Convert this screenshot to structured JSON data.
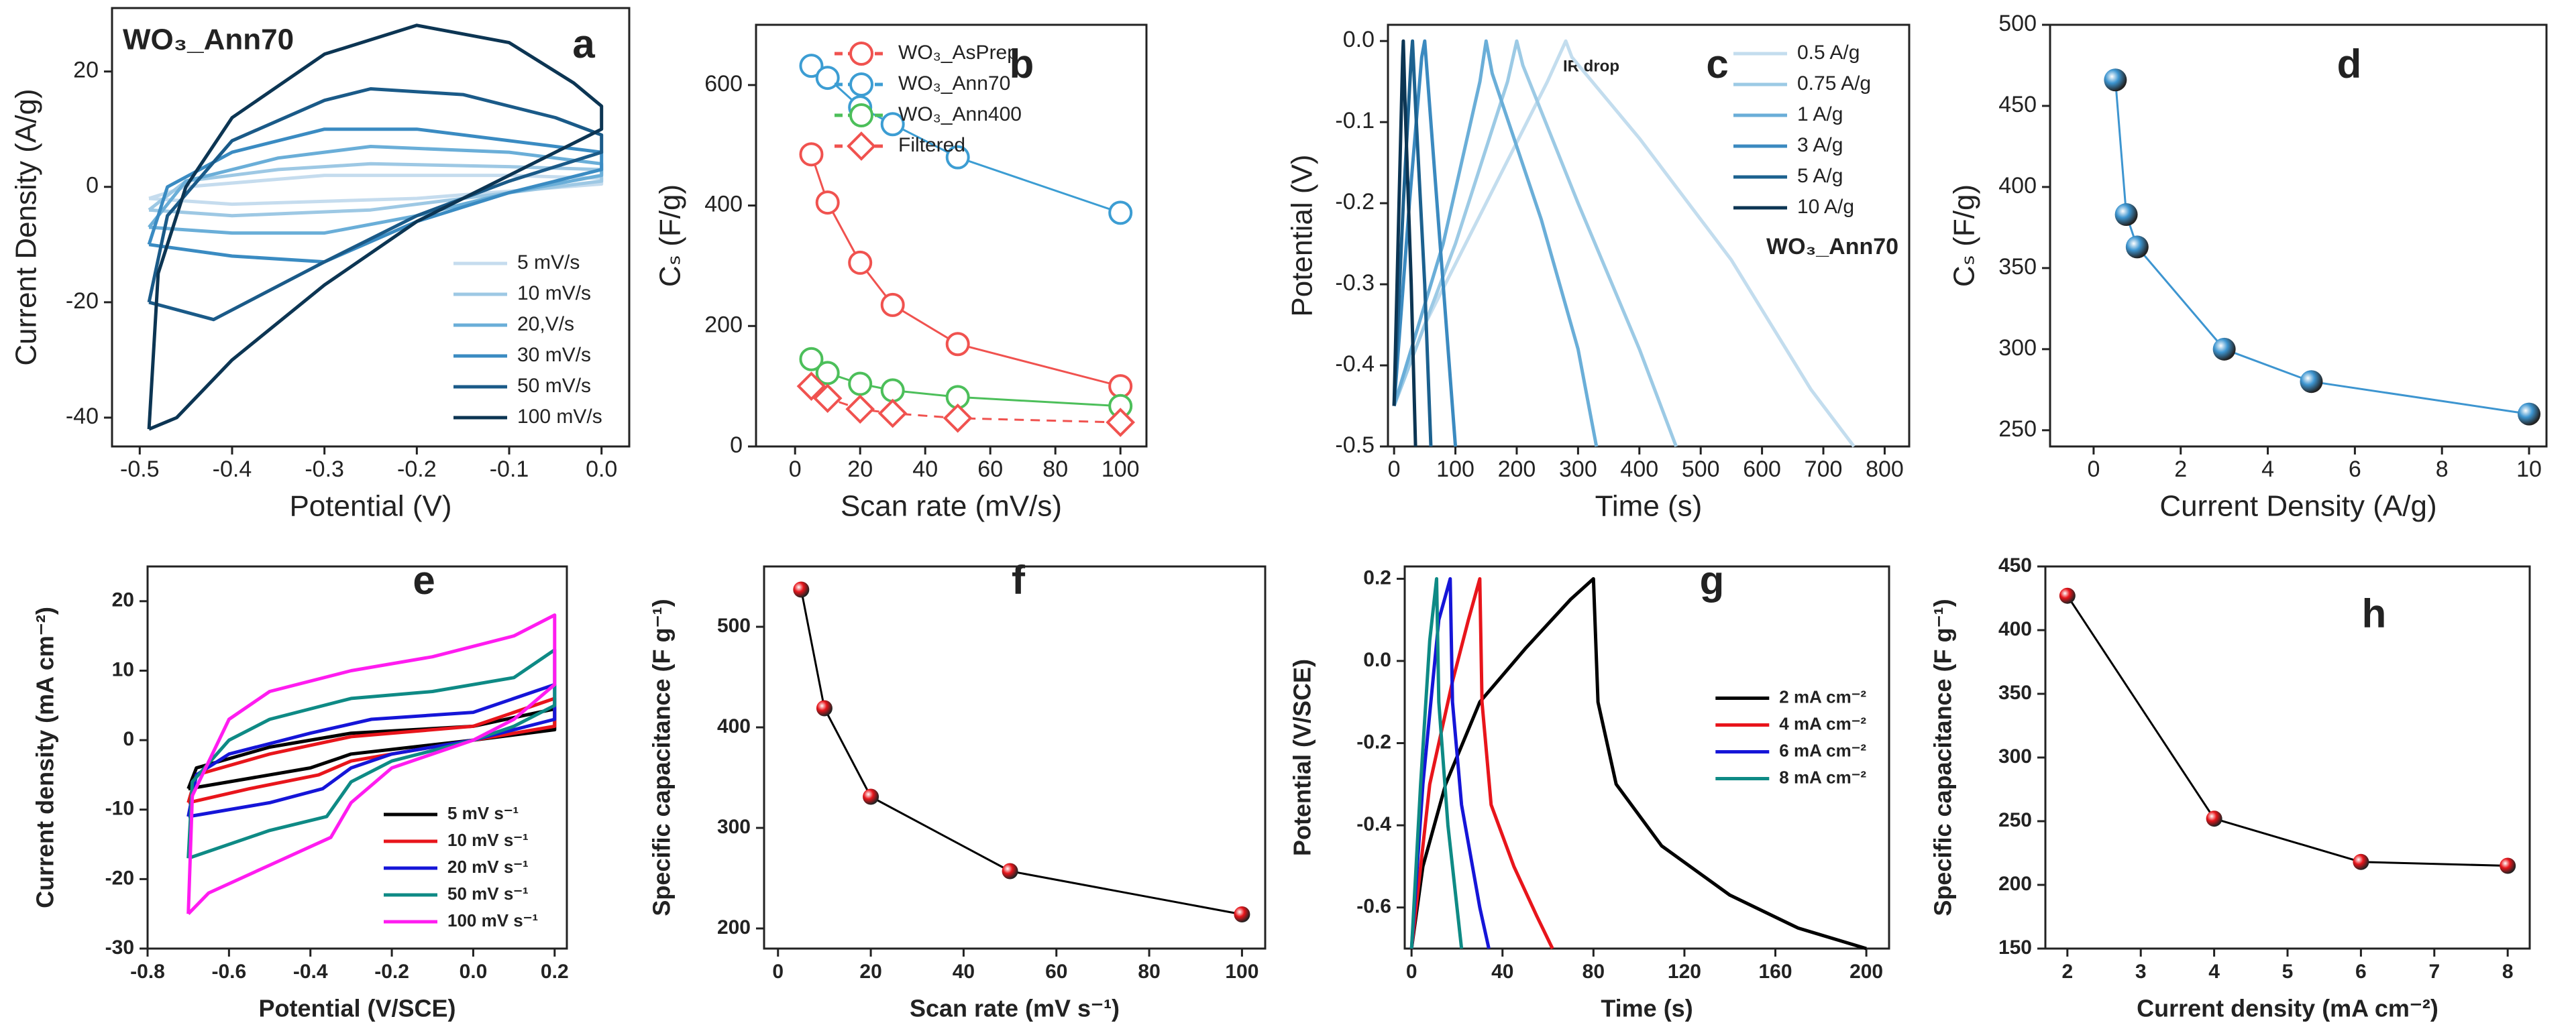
{
  "chart_data": [
    {
      "type": "line",
      "panel_label": "a",
      "annotations": [
        "WO₃_Ann70"
      ],
      "x_label": "Potential (V)",
      "y_label": "Current Density (A/g)",
      "xlim": [
        -0.53,
        0.03
      ],
      "xticks": [
        -0.5,
        -0.4,
        -0.3,
        -0.2,
        -0.1,
        {
          "value": 0,
          "label": "0.0"
        }
      ],
      "ylim": [
        -45,
        31
      ],
      "yticks": [
        -40,
        -20,
        0,
        20
      ],
      "legend": "lower right",
      "series": [
        {
          "name": "5 mV/s",
          "color": "#c5dcee",
          "x": [
            -0.49,
            -0.45,
            -0.3,
            -0.1,
            0,
            0,
            -0.2,
            -0.4,
            -0.49
          ],
          "values": [
            -2,
            0,
            2,
            2,
            1.5,
            0.5,
            -2,
            -3,
            -2
          ]
        },
        {
          "name": "10 mV/s",
          "color": "#9dc8e4",
          "x": [
            -0.49,
            -0.45,
            -0.35,
            -0.25,
            -0.1,
            0,
            0,
            -0.1,
            -0.25,
            -0.4,
            -0.49
          ],
          "values": [
            -4,
            1,
            3,
            4,
            3.5,
            3,
            1,
            -1,
            -4,
            -5,
            -4
          ]
        },
        {
          "name": "20,V/s",
          "color": "#6aaed8",
          "x": [
            -0.49,
            -0.45,
            -0.35,
            -0.25,
            -0.1,
            0,
            0,
            -0.1,
            -0.2,
            -0.3,
            -0.4,
            -0.49
          ],
          "values": [
            -7,
            1,
            5,
            7,
            6,
            4,
            2,
            -1,
            -5,
            -8,
            -8,
            -7
          ]
        },
        {
          "name": "30 mV/s",
          "color": "#3a8bc2",
          "x": [
            -0.49,
            -0.47,
            -0.4,
            -0.3,
            -0.2,
            -0.1,
            0,
            0,
            -0.1,
            -0.2,
            -0.3,
            -0.4,
            -0.49
          ],
          "values": [
            -10,
            0,
            6,
            10,
            10,
            8,
            6,
            3,
            -1,
            -6,
            -13,
            -12,
            -10
          ]
        },
        {
          "name": "50 mV/s",
          "color": "#1a5a88",
          "x": [
            -0.49,
            -0.47,
            -0.4,
            -0.3,
            -0.25,
            -0.15,
            -0.05,
            0,
            0,
            -0.1,
            -0.2,
            -0.3,
            -0.42,
            -0.49
          ],
          "values": [
            -20,
            -5,
            8,
            15,
            17,
            16,
            12,
            9,
            6,
            1,
            -5,
            -13,
            -23,
            -20
          ]
        },
        {
          "name": "100 mV/s",
          "color": "#0c3553",
          "x": [
            -0.49,
            -0.48,
            -0.45,
            -0.4,
            -0.3,
            -0.2,
            -0.1,
            -0.03,
            0,
            0,
            -0.05,
            -0.1,
            -0.2,
            -0.3,
            -0.4,
            -0.46,
            -0.49
          ],
          "values": [
            -42,
            -15,
            0,
            12,
            23,
            28,
            25,
            18,
            14,
            10,
            6,
            2,
            -6,
            -17,
            -30,
            -40,
            -42
          ]
        }
      ]
    },
    {
      "type": "line",
      "panel_label": "b",
      "x_label": "Scan rate (mV/s)",
      "y_label": "Cₛ (F/g)",
      "xlim": [
        -12,
        108
      ],
      "xticks": [
        0,
        20,
        40,
        60,
        80,
        100
      ],
      "ylim": [
        0,
        700
      ],
      "yticks": [
        0,
        200,
        400,
        600
      ],
      "legend": "upper right",
      "x": [
        5,
        10,
        20,
        30,
        50,
        100
      ],
      "series": [
        {
          "name": "WO₃_AsPrep",
          "color": "#f0524f",
          "marker": "circle",
          "values": [
            485,
            405,
            305,
            235,
            170,
            100
          ]
        },
        {
          "name": "WO₃_Ann70",
          "color": "#3c9dd3",
          "marker": "circle",
          "values": [
            632,
            612,
            563,
            535,
            480,
            388
          ]
        },
        {
          "name": "WO₃_Ann400",
          "color": "#4cbf5a",
          "marker": "circle",
          "values": [
            145,
            122,
            104,
            93,
            82,
            67
          ]
        },
        {
          "name": "Filtered",
          "color": "#f0524f",
          "marker": "diamond",
          "dashed": true,
          "values": [
            100,
            80,
            62,
            55,
            47,
            40
          ]
        }
      ]
    },
    {
      "type": "line",
      "panel_label": "c",
      "annotations": [
        "WO₃_Ann70",
        "IR drop"
      ],
      "x_label": "Time (s)",
      "y_label": "Potential (V)",
      "xlim": [
        -10,
        840
      ],
      "xticks": [
        0,
        100,
        200,
        300,
        400,
        500,
        600,
        700,
        800
      ],
      "ylim": [
        -0.5,
        0.02
      ],
      "yticks": [
        -0.5,
        -0.4,
        -0.3,
        -0.2,
        -0.1,
        {
          "value": 0,
          "label": "0.0"
        }
      ],
      "legend": "upper right",
      "series": [
        {
          "name": "0.5 A/g",
          "color": "#c3ddee",
          "x": [
            0,
            50,
            150,
            250,
            280,
            290,
            400,
            550,
            680,
            750
          ],
          "values": [
            -0.45,
            -0.35,
            -0.2,
            -0.05,
            0,
            -0.02,
            -0.12,
            -0.27,
            -0.43,
            -0.5
          ]
        },
        {
          "name": "0.75 A/g",
          "color": "#9ccae5",
          "x": [
            0,
            100,
            185,
            200,
            210,
            300,
            400,
            460
          ],
          "values": [
            -0.45,
            -0.25,
            -0.05,
            0,
            -0.03,
            -0.2,
            -0.38,
            -0.5
          ]
        },
        {
          "name": "1 A/g",
          "color": "#6aaed8",
          "x": [
            0,
            80,
            140,
            150,
            160,
            240,
            300,
            330
          ],
          "values": [
            -0.45,
            -0.25,
            -0.05,
            0,
            -0.04,
            -0.22,
            -0.38,
            -0.5
          ]
        },
        {
          "name": "3 A/g",
          "color": "#3b8ac0",
          "x": [
            0,
            25,
            45,
            50,
            55,
            80,
            100
          ],
          "values": [
            -0.45,
            -0.2,
            -0.02,
            0,
            -0.05,
            -0.3,
            -0.5
          ]
        },
        {
          "name": "5 A/g",
          "color": "#1c618f",
          "x": [
            0,
            15,
            28,
            30,
            35,
            50,
            60
          ],
          "values": [
            -0.45,
            -0.2,
            -0.02,
            0,
            -0.08,
            -0.3,
            -0.5
          ]
        },
        {
          "name": "10 A/g",
          "color": "#0c3553",
          "x": [
            0,
            8,
            14,
            15,
            18,
            28,
            35
          ],
          "values": [
            -0.45,
            -0.2,
            -0.02,
            0,
            -0.08,
            -0.3,
            -0.5
          ]
        }
      ]
    },
    {
      "type": "line",
      "panel_label": "d",
      "x_label": "Current Density (A/g)",
      "y_label": "Cₛ (F/g)",
      "xlim": [
        -1,
        10.4
      ],
      "xticks": [
        0,
        2,
        4,
        6,
        8,
        10
      ],
      "ylim": [
        240,
        500
      ],
      "yticks": [
        250,
        300,
        350,
        400,
        450,
        500
      ],
      "x": [
        0.5,
        0.75,
        1,
        3,
        5,
        10
      ],
      "series": [
        {
          "color": "#3d95d0",
          "marker": "sphere",
          "values": [
            466,
            383,
            363,
            300,
            280,
            260
          ]
        }
      ]
    },
    {
      "type": "line",
      "panel_label": "e",
      "bold": true,
      "x_label": "Potential (V/SCE)",
      "y_label": "Current density (mA cm⁻²)",
      "xlim": [
        -0.8,
        0.23
      ],
      "xticks": [
        -0.8,
        -0.6,
        -0.4,
        -0.2,
        {
          "value": 0,
          "label": "0.0"
        },
        0.2
      ],
      "ylim": [
        -30,
        25
      ],
      "yticks": [
        -30,
        -20,
        -10,
        0,
        10,
        20
      ],
      "legend": "lower right",
      "series": [
        {
          "name": "5 mV s⁻¹",
          "color": "#000000",
          "x": [
            -0.7,
            -0.68,
            -0.5,
            -0.3,
            0,
            0.2,
            0.2,
            0,
            -0.3,
            -0.4,
            -0.55,
            -0.7
          ],
          "values": [
            -7,
            -4,
            -1,
            1,
            2,
            4.5,
            1.5,
            0,
            -2,
            -4,
            -5.5,
            -7
          ]
        },
        {
          "name": "10 mV s⁻¹",
          "color": "#e8151b",
          "x": [
            -0.7,
            -0.68,
            -0.5,
            -0.3,
            0,
            0.2,
            0.2,
            0,
            -0.3,
            -0.38,
            -0.55,
            -0.7
          ],
          "values": [
            -9,
            -5,
            -2,
            0.5,
            2,
            6,
            2,
            0,
            -3,
            -5,
            -7,
            -9
          ]
        },
        {
          "name": "20 mV s⁻¹",
          "color": "#1515d8",
          "x": [
            -0.7,
            -0.68,
            -0.6,
            -0.4,
            -0.25,
            0,
            0.2,
            0.2,
            0,
            -0.2,
            -0.3,
            -0.37,
            -0.5,
            -0.7
          ],
          "values": [
            -11,
            -5,
            -2,
            1,
            3,
            4,
            8,
            3,
            0,
            -2,
            -4,
            -7,
            -9,
            -11
          ]
        },
        {
          "name": "50 mV s⁻¹",
          "color": "#0e8a85",
          "x": [
            -0.7,
            -0.69,
            -0.6,
            -0.5,
            -0.3,
            -0.1,
            0.1,
            0.2,
            0.2,
            0.1,
            0,
            -0.2,
            -0.3,
            -0.36,
            -0.5,
            -0.7
          ],
          "values": [
            -17,
            -6,
            0,
            3,
            6,
            7,
            9,
            13,
            5,
            2,
            0,
            -3,
            -6,
            -11,
            -13,
            -17
          ]
        },
        {
          "name": "100 mV s⁻¹",
          "color": "#ff1cf0",
          "x": [
            -0.7,
            -0.69,
            -0.6,
            -0.5,
            -0.3,
            -0.1,
            0.1,
            0.2,
            0.2,
            0.1,
            0,
            -0.2,
            -0.3,
            -0.35,
            -0.5,
            -0.65,
            -0.7
          ],
          "values": [
            -25,
            -8,
            3,
            7,
            10,
            12,
            15,
            18,
            8,
            3,
            0,
            -4,
            -9,
            -14,
            -18,
            -22,
            -25
          ]
        }
      ]
    },
    {
      "type": "line",
      "panel_label": "f",
      "bold": true,
      "x_label": "Scan rate (mV s⁻¹)",
      "y_label": "Specific capacitance (F g⁻¹)",
      "xlim": [
        -3,
        105
      ],
      "xticks": [
        0,
        20,
        40,
        60,
        80,
        100
      ],
      "ylim": [
        180,
        560
      ],
      "yticks": [
        200,
        300,
        400,
        500
      ],
      "x": [
        5,
        10,
        20,
        50,
        100
      ],
      "series": [
        {
          "color": "#000000",
          "marker_color": "#e8151b",
          "marker": "sphere",
          "values": [
            537,
            419,
            331,
            257,
            214
          ]
        }
      ]
    },
    {
      "type": "line",
      "panel_label": "g",
      "bold": true,
      "x_label": "Time (s)",
      "y_label": "Potential (V/SCE)",
      "xlim": [
        -3,
        210
      ],
      "xticks": [
        0,
        40,
        80,
        120,
        160,
        200
      ],
      "ylim": [
        -0.7,
        0.23
      ],
      "yticks": [
        -0.6,
        -0.4,
        -0.2,
        {
          "value": 0,
          "label": "0.0"
        },
        0.2
      ],
      "legend": "center right",
      "series": [
        {
          "name": "2 mA cm⁻²",
          "color": "#000000",
          "x": [
            0,
            5,
            15,
            30,
            50,
            70,
            80,
            82,
            90,
            110,
            140,
            170,
            200
          ],
          "values": [
            -0.7,
            -0.5,
            -0.3,
            -0.1,
            0.03,
            0.15,
            0.2,
            -0.1,
            -0.3,
            -0.45,
            -0.57,
            -0.65,
            -0.7
          ]
        },
        {
          "name": "4 mA cm⁻²",
          "color": "#e8151b",
          "x": [
            0,
            8,
            18,
            25,
            30,
            31,
            35,
            45,
            55,
            62
          ],
          "values": [
            -0.7,
            -0.3,
            -0.05,
            0.1,
            0.2,
            -0.1,
            -0.35,
            -0.5,
            -0.62,
            -0.7
          ]
        },
        {
          "name": "6 mA cm⁻²",
          "color": "#1515d8",
          "x": [
            0,
            5,
            12,
            17,
            18,
            22,
            30,
            34
          ],
          "values": [
            -0.7,
            -0.3,
            0.1,
            0.2,
            -0.1,
            -0.35,
            -0.6,
            -0.7
          ]
        },
        {
          "name": "8 mA cm⁻²",
          "color": "#0e8a85",
          "x": [
            0,
            4,
            8,
            11,
            12,
            16,
            22
          ],
          "values": [
            -0.7,
            -0.3,
            0.05,
            0.2,
            -0.1,
            -0.4,
            -0.7
          ]
        }
      ]
    },
    {
      "type": "line",
      "panel_label": "h",
      "bold": true,
      "x_label": "Current density (mA cm⁻²)",
      "y_label": "Specific capacitance (F g⁻¹)",
      "xlim": [
        1.7,
        8.3
      ],
      "xticks": [
        2,
        3,
        4,
        5,
        6,
        7,
        8
      ],
      "ylim": [
        150,
        450
      ],
      "yticks": [
        150,
        200,
        250,
        300,
        350,
        400,
        450
      ],
      "x": [
        2,
        4,
        6,
        8
      ],
      "series": [
        {
          "color": "#000000",
          "marker_color": "#e8151b",
          "marker": "sphere",
          "values": [
            427,
            252,
            218,
            215
          ]
        }
      ]
    }
  ]
}
